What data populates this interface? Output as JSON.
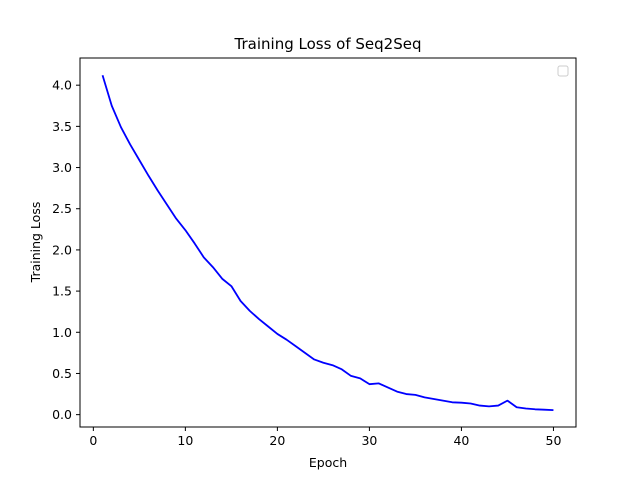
{
  "chart_data": {
    "type": "line",
    "title": "Training Loss of Seq2Seq",
    "xlabel": "Epoch",
    "ylabel": "Training Loss",
    "xlim": [
      -1.45,
      52.45
    ],
    "ylim": [
      -0.15,
      4.33
    ],
    "xticks": [
      0,
      10,
      20,
      30,
      40,
      50
    ],
    "yticks": [
      0.0,
      0.5,
      1.0,
      1.5,
      2.0,
      2.5,
      3.0,
      3.5,
      4.0
    ],
    "xtick_labels": [
      "0",
      "10",
      "20",
      "30",
      "40",
      "50"
    ],
    "ytick_labels": [
      "0.0",
      "0.5",
      "1.0",
      "1.5",
      "2.0",
      "2.5",
      "3.0",
      "3.5",
      "4.0"
    ],
    "grid": false,
    "legend": "top-right (empty)",
    "series": [
      {
        "color": "#0000ff",
        "x": [
          1,
          2,
          3,
          4,
          5,
          6,
          7,
          8,
          9,
          10,
          11,
          12,
          13,
          14,
          15,
          16,
          17,
          18,
          19,
          20,
          21,
          22,
          23,
          24,
          25,
          26,
          27,
          28,
          29,
          30,
          31,
          32,
          33,
          34,
          35,
          36,
          37,
          38,
          39,
          40,
          41,
          42,
          43,
          44,
          45,
          46,
          47,
          48,
          49,
          50
        ],
        "y": [
          4.12,
          3.75,
          3.49,
          3.28,
          3.09,
          2.9,
          2.72,
          2.55,
          2.38,
          2.24,
          2.08,
          1.91,
          1.79,
          1.65,
          1.56,
          1.38,
          1.26,
          1.16,
          1.07,
          0.98,
          0.91,
          0.83,
          0.75,
          0.67,
          0.63,
          0.6,
          0.55,
          0.47,
          0.44,
          0.37,
          0.38,
          0.33,
          0.28,
          0.25,
          0.24,
          0.21,
          0.19,
          0.17,
          0.15,
          0.145,
          0.135,
          0.11,
          0.1,
          0.11,
          0.17,
          0.09,
          0.075,
          0.065,
          0.06,
          0.055
        ]
      }
    ]
  }
}
